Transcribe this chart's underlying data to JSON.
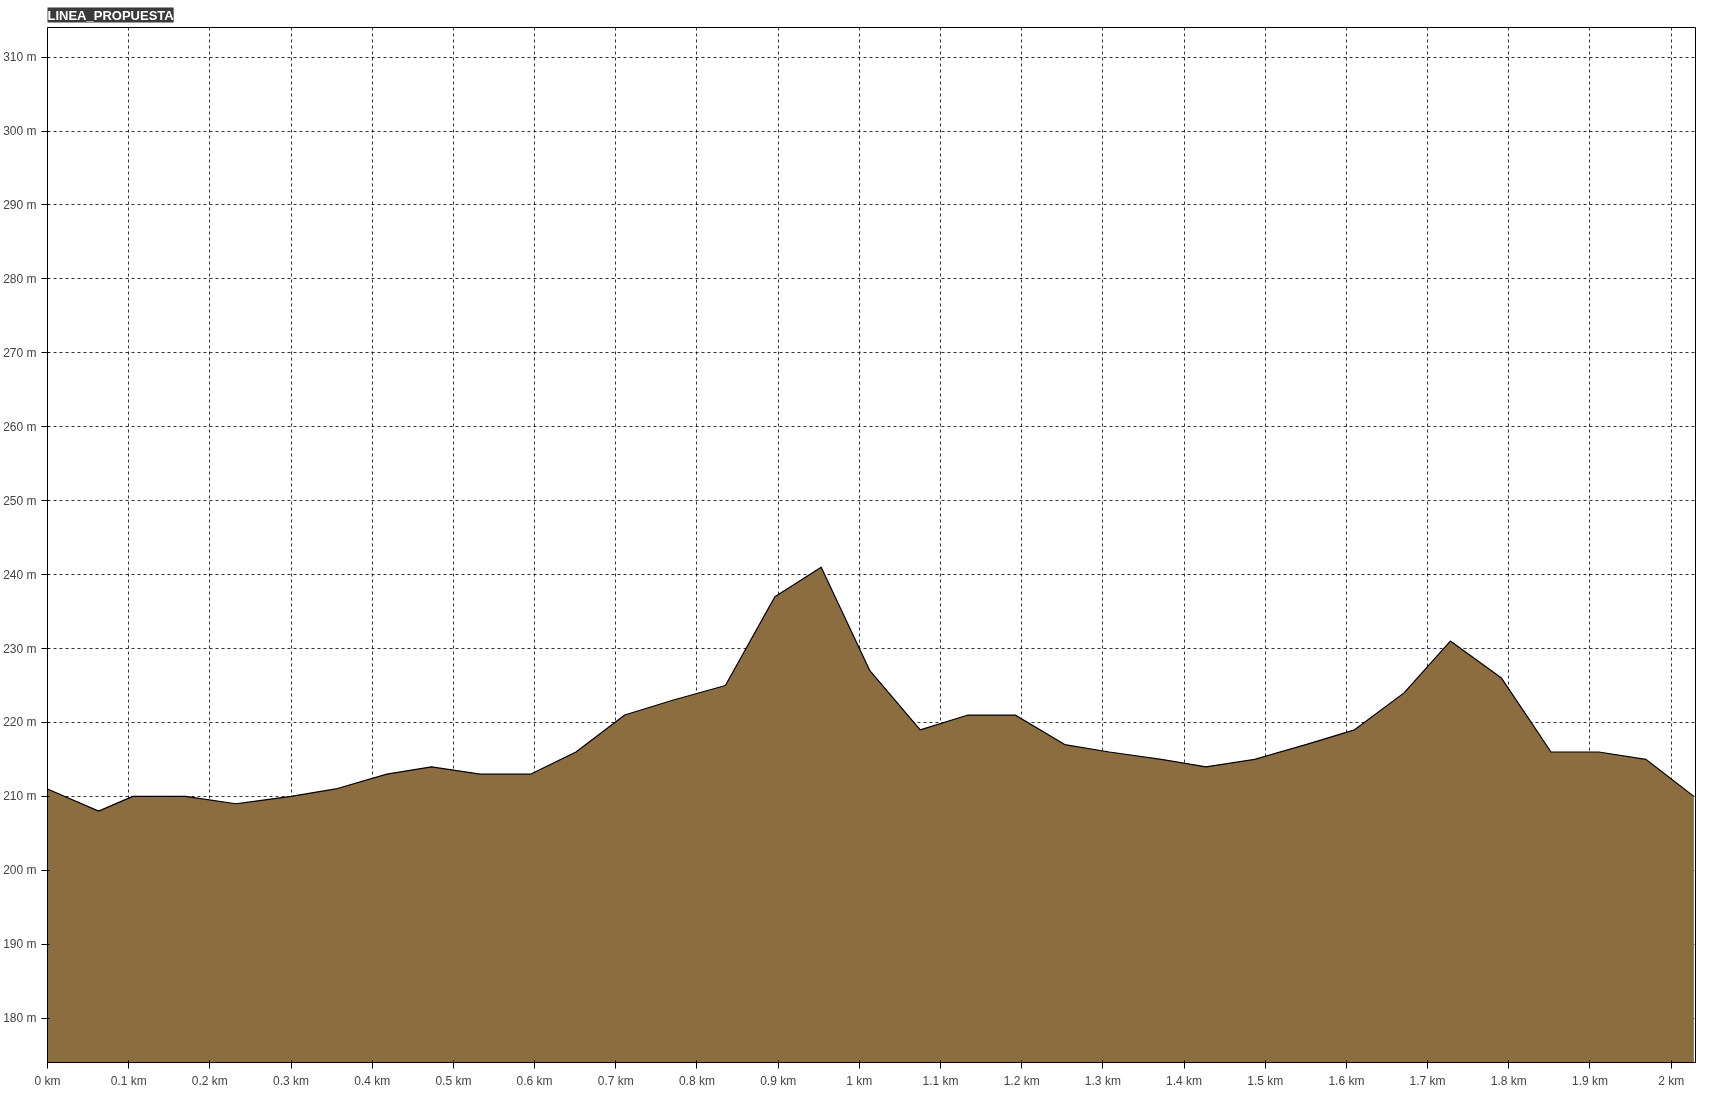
{
  "chart_data": {
    "type": "area",
    "title": "LINEA_PROPUESTA",
    "x": [
      0,
      0.063,
      0.105,
      0.17,
      0.232,
      0.3,
      0.355,
      0.418,
      0.473,
      0.533,
      0.595,
      0.651,
      0.711,
      0.77,
      0.835,
      0.896,
      0.953,
      1.013,
      1.075,
      1.134,
      1.192,
      1.253,
      1.308,
      1.372,
      1.427,
      1.487,
      1.55,
      1.61,
      1.671,
      1.728,
      1.791,
      1.852,
      1.911,
      1.969,
      2.028
    ],
    "series": [
      {
        "color": "#8b6d40",
        "values": [
          211,
          208,
          210,
          210,
          209,
          210,
          211,
          213,
          214,
          213,
          213,
          216,
          221,
          223,
          225,
          237,
          241,
          227,
          219,
          221,
          221,
          217,
          216,
          215,
          214,
          215,
          217,
          219,
          224,
          231,
          226,
          216,
          216,
          215,
          210
        ]
      }
    ],
    "xlim": [
      0,
      2.03
    ],
    "ylim": [
      174,
      314
    ],
    "xticks": [
      {
        "value": 0,
        "label": "0 km"
      },
      {
        "value": 0.1,
        "label": "0.1 km"
      },
      {
        "value": 0.2,
        "label": "0.2 km"
      },
      {
        "value": 0.3,
        "label": "0.3 km"
      },
      {
        "value": 0.4,
        "label": "0.4 km"
      },
      {
        "value": 0.5,
        "label": "0.5 km"
      },
      {
        "value": 0.6,
        "label": "0.6 km"
      },
      {
        "value": 0.7,
        "label": "0.7 km"
      },
      {
        "value": 0.8,
        "label": "0.8 km"
      },
      {
        "value": 0.9,
        "label": "0.9 km"
      },
      {
        "value": 1,
        "label": "1 km"
      },
      {
        "value": 1.1,
        "label": "1.1 km"
      },
      {
        "value": 1.2,
        "label": "1.2 km"
      },
      {
        "value": 1.3,
        "label": "1.3 km"
      },
      {
        "value": 1.4,
        "label": "1.4 km"
      },
      {
        "value": 1.5,
        "label": "1.5 km"
      },
      {
        "value": 1.6,
        "label": "1.6 km"
      },
      {
        "value": 1.7,
        "label": "1.7 km"
      },
      {
        "value": 1.8,
        "label": "1.8 km"
      },
      {
        "value": 1.9,
        "label": "1.9 km"
      },
      {
        "value": 2,
        "label": "2 km"
      }
    ],
    "yticks": [
      {
        "value": 180,
        "label": "180 m"
      },
      {
        "value": 190,
        "label": "190 m"
      },
      {
        "value": 200,
        "label": "200 m"
      },
      {
        "value": 210,
        "label": "210 m"
      },
      {
        "value": 220,
        "label": "220 m"
      },
      {
        "value": 230,
        "label": "230 m"
      },
      {
        "value": 240,
        "label": "240 m"
      },
      {
        "value": 250,
        "label": "250 m"
      },
      {
        "value": 260,
        "label": "260 m"
      },
      {
        "value": 270,
        "label": "270 m"
      },
      {
        "value": 280,
        "label": "280 m"
      },
      {
        "value": 290,
        "label": "290 m"
      },
      {
        "value": 300,
        "label": "300 m"
      },
      {
        "value": 310,
        "label": "310 m"
      }
    ],
    "grid": true,
    "line_style": "solid"
  }
}
